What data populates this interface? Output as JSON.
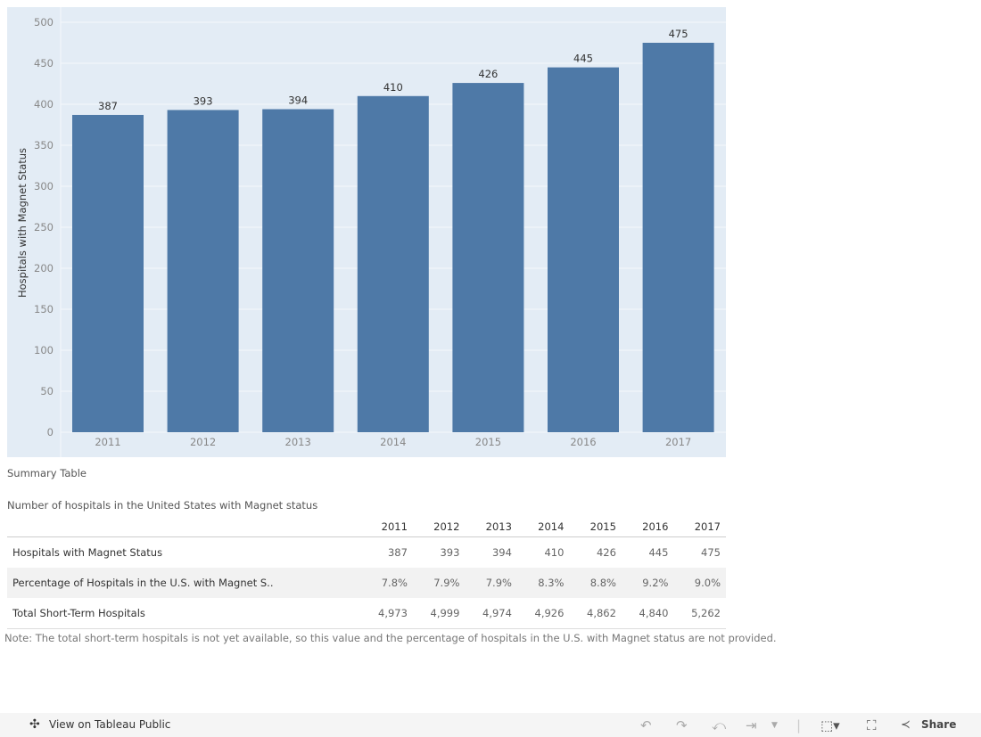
{
  "chart_data": {
    "type": "bar",
    "categories": [
      "2011",
      "2012",
      "2013",
      "2014",
      "2015",
      "2016",
      "2017"
    ],
    "values": [
      387,
      393,
      394,
      410,
      426,
      445,
      475
    ],
    "ylabel": "Hospitals with Magnet Status",
    "ylim": [
      0,
      500
    ],
    "yticks": [
      0,
      50,
      100,
      150,
      200,
      250,
      300,
      350,
      400,
      450,
      500
    ],
    "grid": true,
    "bar_color": "#4e79a7",
    "background": "#e3ecf5"
  },
  "summary": {
    "heading": "Summary Table",
    "subtitle": "Number of hospitals in the United States with Magnet status",
    "columns": [
      "2011",
      "2012",
      "2013",
      "2014",
      "2015",
      "2016",
      "2017"
    ],
    "rows": [
      {
        "label": "Hospitals with Magnet Status",
        "values": [
          "387",
          "393",
          "394",
          "410",
          "426",
          "445",
          "475"
        ]
      },
      {
        "label": "Percentage of Hospitals in the U.S. with Magnet S..",
        "values": [
          "7.8%",
          "7.9%",
          "7.9%",
          "8.3%",
          "8.8%",
          "9.2%",
          "9.0%"
        ]
      },
      {
        "label": "Total Short-Term Hospitals",
        "values": [
          "4,973",
          "4,999",
          "4,974",
          "4,926",
          "4,862",
          "4,840",
          "5,262"
        ]
      }
    ],
    "note": "Note: The total short-term hospitals is not yet available, so this value and the percentage of hospitals in the U.S. with Magnet status are not provided."
  },
  "footer": {
    "view_label": "View on Tableau Public",
    "share_label": "Share"
  }
}
